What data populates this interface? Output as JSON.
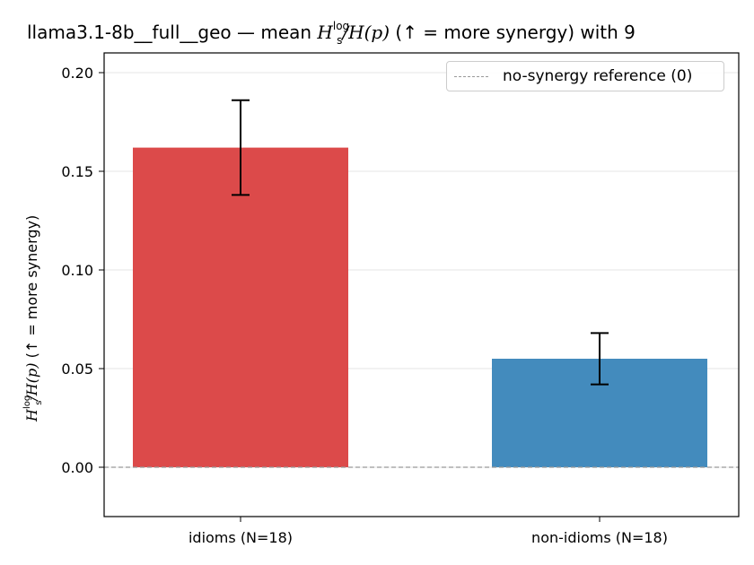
{
  "chart_data": {
    "type": "bar",
    "title": {
      "prefix": "llama3.1-8b__full__geo — mean ",
      "math_h": "H",
      "sup": "log",
      "sub": "s",
      "math_hp": "/H(p)",
      "suffix": "  (↑ = more synergy) with 9"
    },
    "ylabel": {
      "math_h": "H",
      "sup": "log",
      "sub": "s",
      "math_hp": "/H(p)",
      "suffix": "  (↑ = more synergy)"
    },
    "categories": [
      "idioms (N=18)",
      "non-idioms (N=18)"
    ],
    "values": [
      0.162,
      0.055
    ],
    "errors": [
      0.024,
      0.013
    ],
    "colors": [
      "#dc4a4a",
      "#438bbd"
    ],
    "ylim": [
      -0.025,
      0.21
    ],
    "yticks": [
      0.0,
      0.05,
      0.1,
      0.15,
      0.2
    ],
    "ytick_labels": [
      "0.00",
      "0.05",
      "0.10",
      "0.15",
      "0.20"
    ],
    "grid": "horizontal",
    "reference_line": {
      "value": 0,
      "color": "#999999"
    },
    "legend": {
      "position": "top-right",
      "label": "no-synergy reference (0)"
    }
  }
}
